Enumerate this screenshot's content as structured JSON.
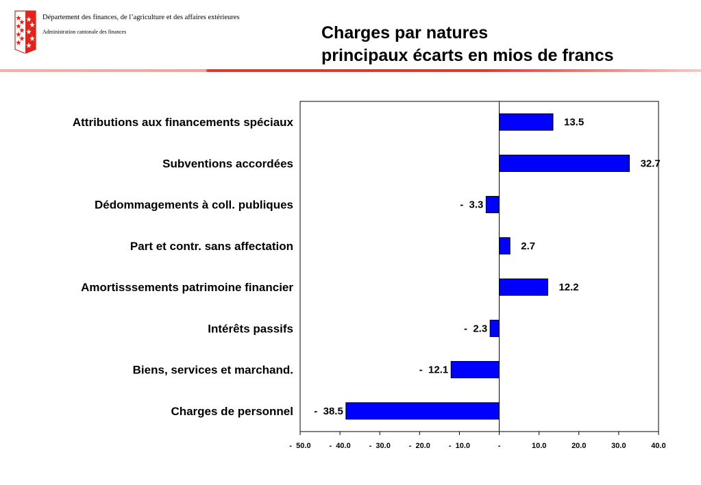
{
  "header": {
    "department": "Département des finances, de l’agriculture et des affaires extérieures",
    "administration": "Administration cantonale des finances",
    "title_line1": "Charges par natures",
    "title_line2": "principaux écarts en mios de francs"
  },
  "colors": {
    "bar": "#0000ff",
    "accent": "#e8322b",
    "logo": "#e2231a"
  },
  "chart_data": {
    "type": "bar",
    "orientation": "horizontal",
    "categories": [
      "Attributions aux financements spéciaux",
      "Subventions accordées",
      "Dédommagements à coll. publiques",
      "Part et contr. sans affectation",
      "Amortisssements patrimoine financier",
      "Intérêts passifs",
      "Biens, services et marchand.",
      "Charges de personnel"
    ],
    "values": [
      13.5,
      32.7,
      -3.3,
      2.7,
      12.2,
      -2.3,
      -12.1,
      -38.5
    ],
    "value_labels": [
      "13.5",
      "32.7",
      "-  3.3",
      "2.7",
      "12.2",
      "-  2.3",
      "-  12.1",
      "-  38.5"
    ],
    "xlim": [
      -50,
      40
    ],
    "xticks": [
      -50,
      -40,
      -30,
      -20,
      -10,
      0,
      10,
      20,
      30,
      40
    ],
    "xtick_labels": [
      "-  50.0",
      "-  40.0",
      "-  30.0",
      "-  20.0",
      "-  10.0",
      "-",
      "10.0",
      "20.0",
      "30.0",
      "40.0"
    ],
    "grid": false,
    "title": "",
    "xlabel": "",
    "ylabel": ""
  }
}
